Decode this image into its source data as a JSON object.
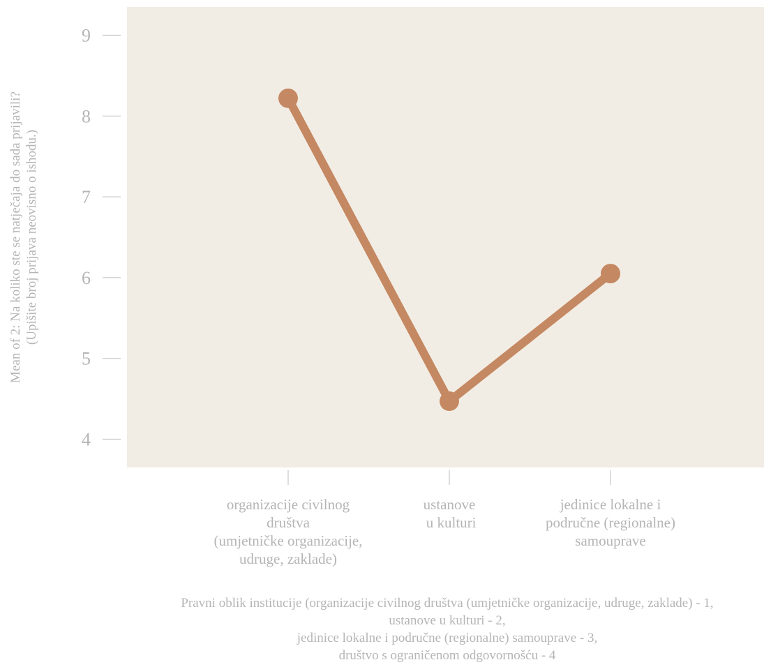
{
  "chart_data": {
    "type": "line",
    "ylabel_lines": [
      "Mean of 2: Na koliko ste se natječaja do sada prijavili?",
      "(Upišite broj prijava neovisno o ishodu.)"
    ],
    "xlabel_lines": [
      "Pravni oblik institucije (organizacije civilnog društva (umjetničke organizacije, udruge, zaklade) - 1,",
      "ustanove u kulturi - 2,",
      "jedinice lokalne i područne (regionalne) samouprave - 3,",
      "društvo s ograničenom odgovornošću - 4"
    ],
    "categories": [
      [
        "organizacije civilnog",
        "društva",
        "(umjetničke organizacije,",
        "udruge, zaklade)"
      ],
      [
        "ustanove",
        " u kulturi"
      ],
      [
        "jedinice lokalne i",
        "područne (regionalne)",
        "samouprave"
      ]
    ],
    "values": [
      8.22,
      4.47,
      6.05
    ],
    "yticks": [
      4,
      5,
      6,
      7,
      8,
      9
    ],
    "ylim": [
      3.65,
      9.35
    ],
    "colors": {
      "panel": "#f2ede4",
      "line": "#c48862",
      "text": "#b5b5b5",
      "tick": "#c8c8c8"
    }
  }
}
